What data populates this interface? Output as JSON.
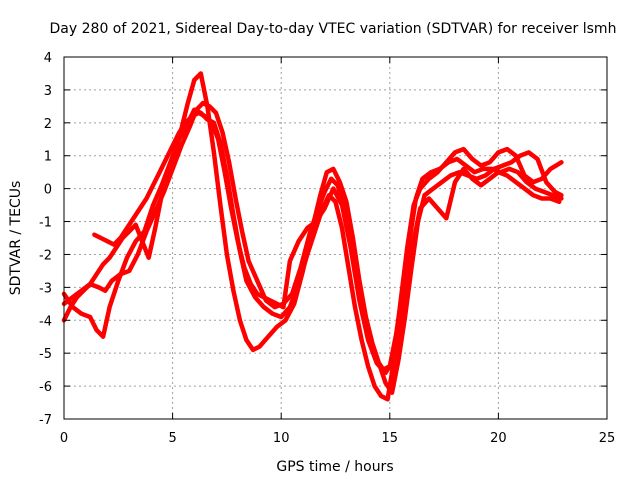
{
  "chart_data": {
    "type": "line",
    "title": "Day 280 of 2021, Sidereal Day-to-day VTEC variation (SDTVAR) for receiver lsmh",
    "xlabel": "GPS time / hours",
    "ylabel": "SDTVAR / TECUs",
    "xlim": [
      0,
      25
    ],
    "ylim": [
      -7,
      4
    ],
    "xticks": [
      0,
      5,
      10,
      15,
      20,
      25
    ],
    "yticks": [
      -7,
      -6,
      -5,
      -4,
      -3,
      -2,
      -1,
      0,
      1,
      2,
      3,
      4
    ],
    "grid": true,
    "marker": "plus",
    "color": "#ff0000",
    "series": [
      {
        "x": [
          0.0,
          0.4,
          0.8,
          1.2,
          1.6,
          1.9,
          2.2,
          2.6,
          3.0,
          3.4,
          3.8,
          4.2,
          4.6,
          5.0,
          5.4,
          5.8,
          6.1,
          6.4,
          6.7,
          7.0,
          7.3,
          7.6,
          7.9,
          8.2,
          8.5,
          8.9,
          9.3,
          9.7,
          10.1,
          10.5,
          10.9,
          11.3,
          11.7,
          12.0,
          12.3,
          12.6,
          12.9,
          13.2,
          13.5,
          13.8,
          14.1,
          14.4,
          14.7,
          15.0,
          15.3,
          15.6,
          15.9,
          16.2,
          16.5,
          16.9,
          17.3,
          17.7,
          18.1,
          18.5,
          18.9,
          19.3,
          19.7,
          20.1,
          20.5,
          20.9,
          21.3,
          21.7,
          22.1,
          22.5,
          22.9
        ],
        "y": [
          -3.5,
          -3.3,
          -3.1,
          -2.9,
          -3.0,
          -3.1,
          -2.8,
          -2.6,
          -2.5,
          -2.0,
          -1.3,
          -0.7,
          -0.1,
          0.6,
          1.3,
          1.9,
          2.4,
          2.6,
          2.5,
          2.3,
          1.7,
          0.8,
          -0.3,
          -1.3,
          -2.2,
          -2.8,
          -3.4,
          -3.6,
          -3.5,
          -3.2,
          -2.4,
          -1.4,
          -0.6,
          -0.1,
          0.3,
          0.1,
          -0.6,
          -1.6,
          -2.8,
          -3.8,
          -4.6,
          -5.2,
          -5.5,
          -5.4,
          -4.4,
          -3.0,
          -1.6,
          -0.3,
          0.3,
          0.5,
          0.6,
          0.8,
          0.9,
          0.7,
          0.5,
          0.6,
          0.6,
          0.5,
          0.6,
          0.5,
          0.2,
          0.0,
          -0.1,
          -0.2,
          -0.3
        ]
      },
      {
        "x": [
          0.0,
          0.4,
          0.8,
          1.2,
          1.5,
          1.8,
          2.1,
          2.5,
          2.9,
          3.3,
          3.7,
          4.1,
          4.5,
          4.9,
          5.3,
          5.7,
          6.0,
          6.3,
          6.6,
          6.9,
          7.2,
          7.5,
          7.8,
          8.1,
          8.4,
          8.8,
          9.2,
          9.6,
          10.0,
          10.4,
          10.8,
          11.2,
          11.6,
          11.9,
          12.2,
          12.5,
          12.8,
          13.1,
          13.4,
          13.7,
          14.0,
          14.3,
          14.6,
          14.9,
          15.2,
          15.5,
          15.8,
          16.1,
          16.4,
          16.8,
          17.2,
          17.6,
          18.0,
          18.4,
          18.8,
          19.2,
          19.6,
          20.0,
          20.4,
          20.8,
          21.2,
          21.6,
          22.0,
          22.4,
          22.9
        ],
        "y": [
          -3.2,
          -3.6,
          -3.8,
          -3.9,
          -4.3,
          -4.5,
          -3.6,
          -2.8,
          -2.1,
          -1.6,
          -1.3,
          -0.5,
          0.1,
          0.8,
          1.5,
          2.0,
          2.4,
          2.3,
          2.1,
          2.0,
          1.4,
          0.4,
          -0.8,
          -1.9,
          -2.8,
          -3.3,
          -3.6,
          -3.8,
          -3.9,
          -3.6,
          -2.9,
          -2.0,
          -1.2,
          -0.6,
          -0.2,
          -0.4,
          -1.2,
          -2.4,
          -3.6,
          -4.6,
          -5.4,
          -6.0,
          -6.3,
          -6.4,
          -5.2,
          -3.4,
          -1.8,
          -0.5,
          0.0,
          0.3,
          0.5,
          0.8,
          1.1,
          1.2,
          0.9,
          0.7,
          0.8,
          1.1,
          1.2,
          1.0,
          0.4,
          0.2,
          0.3,
          0.6,
          0.8
        ]
      },
      {
        "x": [
          0.0,
          0.3,
          0.6,
          0.9,
          1.2,
          1.5,
          1.8,
          2.1,
          2.4,
          2.7,
          3.0,
          3.3,
          3.6,
          3.9,
          4.2,
          4.5,
          4.8,
          5.1,
          5.4,
          5.7,
          6.0,
          6.3,
          6.6,
          6.9,
          7.2,
          7.5,
          7.8,
          8.1,
          8.4,
          8.7,
          9.0,
          9.4,
          9.8,
          10.2,
          10.6,
          11.0,
          11.4,
          11.8,
          12.1,
          12.4,
          12.7,
          13.0,
          13.3,
          13.6,
          13.9,
          14.2,
          14.5,
          14.8,
          15.1,
          15.4,
          15.7,
          16.0,
          16.3,
          16.6,
          17.0,
          17.4,
          17.8,
          18.2,
          18.6,
          19.0,
          19.4,
          19.8,
          20.2,
          20.6,
          21.0,
          21.4,
          21.8,
          22.2,
          22.6,
          22.9
        ],
        "y": [
          -4.0,
          -3.6,
          -3.3,
          -3.1,
          -2.9,
          -2.6,
          -2.3,
          -2.1,
          -1.8,
          -1.5,
          -1.3,
          -1.1,
          -1.6,
          -2.1,
          -1.2,
          -0.2,
          0.4,
          1.0,
          1.8,
          2.6,
          3.3,
          3.5,
          2.5,
          1.1,
          -0.5,
          -2.0,
          -3.1,
          -4.0,
          -4.6,
          -4.9,
          -4.8,
          -4.5,
          -4.2,
          -4.0,
          -3.5,
          -2.5,
          -1.3,
          -0.2,
          0.5,
          0.6,
          0.2,
          -0.4,
          -1.5,
          -2.8,
          -3.9,
          -4.7,
          -5.3,
          -5.9,
          -6.2,
          -5.2,
          -3.9,
          -2.4,
          -1.0,
          -0.2,
          0.0,
          0.2,
          0.4,
          0.5,
          0.4,
          0.3,
          0.4,
          0.6,
          0.7,
          0.8,
          1.0,
          1.1,
          0.9,
          0.2,
          -0.1,
          -0.2
        ]
      },
      {
        "x": [
          1.4,
          1.7,
          2.0,
          2.3,
          2.6,
          2.9,
          3.2,
          3.5,
          3.8,
          4.1,
          4.4,
          4.7,
          5.0,
          5.3,
          5.6,
          5.9,
          6.2,
          6.5,
          6.8,
          7.1,
          7.4,
          7.7,
          8.0,
          8.3,
          8.6,
          8.9,
          9.2,
          9.5,
          9.8,
          10.1,
          10.4,
          10.8,
          11.2,
          11.6,
          12.0,
          12.4,
          12.8,
          13.2,
          13.6,
          14.0,
          14.4,
          14.8,
          15.2,
          15.6,
          16.0,
          16.4,
          16.8,
          17.2,
          17.6,
          18.0,
          18.4,
          18.8,
          19.2,
          19.6,
          20.0,
          20.4,
          20.8,
          21.2,
          21.6,
          22.0,
          22.4,
          22.8
        ],
        "y": [
          -1.4,
          -1.5,
          -1.6,
          -1.7,
          -1.5,
          -1.2,
          -0.9,
          -0.6,
          -0.3,
          0.1,
          0.5,
          0.9,
          1.3,
          1.7,
          2.0,
          2.2,
          2.3,
          2.2,
          2.0,
          1.5,
          0.5,
          -0.6,
          -1.6,
          -2.4,
          -2.9,
          -3.2,
          -3.3,
          -3.4,
          -3.5,
          -3.6,
          -2.2,
          -1.6,
          -1.2,
          -1.0,
          -0.6,
          0.0,
          -0.5,
          -1.8,
          -3.4,
          -4.6,
          -5.3,
          -5.6,
          -5.2,
          -3.6,
          -1.9,
          -0.6,
          -0.3,
          -0.6,
          -0.9,
          0.2,
          0.6,
          0.3,
          0.1,
          0.3,
          0.5,
          0.4,
          0.2,
          0.0,
          -0.2,
          -0.3,
          -0.3,
          -0.4
        ]
      }
    ]
  }
}
